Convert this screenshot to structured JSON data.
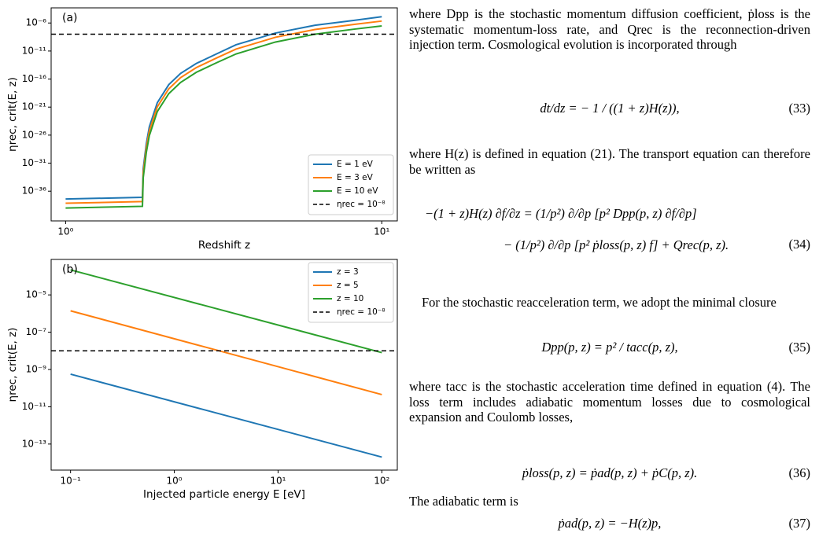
{
  "chart_data": [
    {
      "type": "line",
      "panel_label": "(a)",
      "xlabel": "Redshift z",
      "ylabel": "ηrec, crit(E, z)",
      "xscale": "log",
      "yscale": "log",
      "xlim": [
        0.9,
        11.2
      ],
      "ylim": [
        5e-42,
        0.0005
      ],
      "xticks": [
        {
          "value": 1,
          "label": "10⁰"
        },
        {
          "value": 10,
          "label": "10¹"
        }
      ],
      "yticks": [
        {
          "value": 1e-06,
          "label": "10⁻⁶"
        },
        {
          "value": 1e-11,
          "label": "10⁻¹¹"
        },
        {
          "value": 1e-16,
          "label": "10⁻¹⁶"
        },
        {
          "value": 1e-21,
          "label": "10⁻²¹"
        },
        {
          "value": 1e-26,
          "label": "10⁻²⁶"
        },
        {
          "value": 1e-31,
          "label": "10⁻³¹"
        },
        {
          "value": 1e-36,
          "label": "10⁻³⁶"
        }
      ],
      "legend": "lower right",
      "x": [
        1,
        1.75,
        1.76,
        1.8,
        1.84,
        1.95,
        2.12,
        2.31,
        2.59,
        3.0,
        3.46,
        4.61,
        6.15,
        8.19,
        10
      ],
      "series": [
        {
          "name": "E = 1 eV",
          "color": "#1f77b4",
          "values": [
            4e-38,
            8e-38,
            1e-32,
            3e-28,
            3e-25,
            6e-21,
            1e-17,
            1e-15,
            6e-14,
            3e-12,
            1.3e-10,
            1.6e-08,
            4e-07,
            3e-06,
            1.3e-05
          ]
        },
        {
          "name": "E = 3 eV",
          "color": "#ff7f0e",
          "values": [
            7e-39,
            1.4e-38,
            1.8e-33,
            5.6e-29,
            5.6e-26,
            1.1e-21,
            1.8e-18,
            1.8e-16,
            1.1e-14,
            5.6e-13,
            2.2e-11,
            2.8e-09,
            7e-08,
            5.6e-07,
            2.2e-06
          ]
        },
        {
          "name": "E = 10 eV",
          "color": "#2ca02c",
          "values": [
            1e-39,
            2e-39,
            2.5e-34,
            8e-30,
            8e-27,
            1.6e-22,
            2.5e-19,
            2.5e-17,
            1.6e-15,
            8e-14,
            3e-12,
            4e-10,
            1e-08,
            8e-08,
            3e-07
          ]
        }
      ],
      "hline": {
        "name": "ηrec = 10⁻⁸",
        "value": 1e-08,
        "color": "#000000"
      }
    },
    {
      "type": "line",
      "panel_label": "(b)",
      "xlabel": "Injected particle energy E [eV]",
      "ylabel": "ηrec, crit(E, z)",
      "xscale": "log",
      "yscale": "log",
      "xlim": [
        0.065,
        141
      ],
      "ylim": [
        4e-15,
        0.0008
      ],
      "xticks": [
        {
          "value": 0.1,
          "label": "10⁻¹"
        },
        {
          "value": 1,
          "label": "10⁰"
        },
        {
          "value": 10,
          "label": "10¹"
        },
        {
          "value": 100,
          "label": "10²"
        }
      ],
      "yticks": [
        {
          "value": 1e-05,
          "label": "10⁻⁵"
        },
        {
          "value": 1e-07,
          "label": "10⁻⁷"
        },
        {
          "value": 1e-09,
          "label": "10⁻⁹"
        },
        {
          "value": 1e-11,
          "label": "10⁻¹¹"
        },
        {
          "value": 1e-13,
          "label": "10⁻¹³"
        }
      ],
      "legend": "upper right",
      "x": [
        0.1,
        100
      ],
      "series": [
        {
          "name": "z = 3",
          "color": "#1f77b4",
          "values": [
            5.6e-10,
            2e-14
          ]
        },
        {
          "name": "z = 5",
          "color": "#ff7f0e",
          "values": [
            1.4e-06,
            4.5e-11
          ]
        },
        {
          "name": "z = 10",
          "color": "#2ca02c",
          "values": [
            0.00022,
            8e-09
          ]
        }
      ],
      "hline": {
        "name": "ηrec = 10⁻⁸",
        "value": 1e-08,
        "color": "#000000"
      }
    }
  ],
  "text": {
    "paragraphs": [
      "where Dpp is the stochastic momentum diffusion coefficient, ṗloss is the systematic momentum-loss rate, and Qrec is the reconnection-driven injection term. Cosmological evolution is incorporated through",
      "where H(z) is defined in equation (21). The transport equation can therefore be written as",
      "For the stochastic reacceleration term, we adopt the minimal closure",
      "where tacc is the stochastic acceleration time defined in equation (4). The loss term includes adiabatic momentum losses due to cosmological expansion and Coulomb losses,",
      "The adiabatic term is"
    ],
    "equations": [
      {
        "lines": [
          "dt/dz = − 1 / ((1 + z)H(z)),"
        ],
        "number": "(33)"
      },
      {
        "lines": [
          "−(1 + z)H(z) ∂f/∂z = (1/p²) ∂/∂p [p² Dpp(p, z) ∂f/∂p]",
          "− (1/p²) ∂/∂p [p² ṗloss(p, z) f] + Qrec(p, z)."
        ],
        "number": "(34)"
      },
      {
        "lines": [
          "Dpp(p, z) = p² / tacc(p, z),"
        ],
        "number": "(35)"
      },
      {
        "lines": [
          "ṗloss(p, z) = ṗad(p, z) + ṗC(p, z)."
        ],
        "number": "(36)"
      },
      {
        "lines": [
          "ṗad(p, z) = −H(z)p,"
        ],
        "number": "(37)"
      }
    ]
  }
}
